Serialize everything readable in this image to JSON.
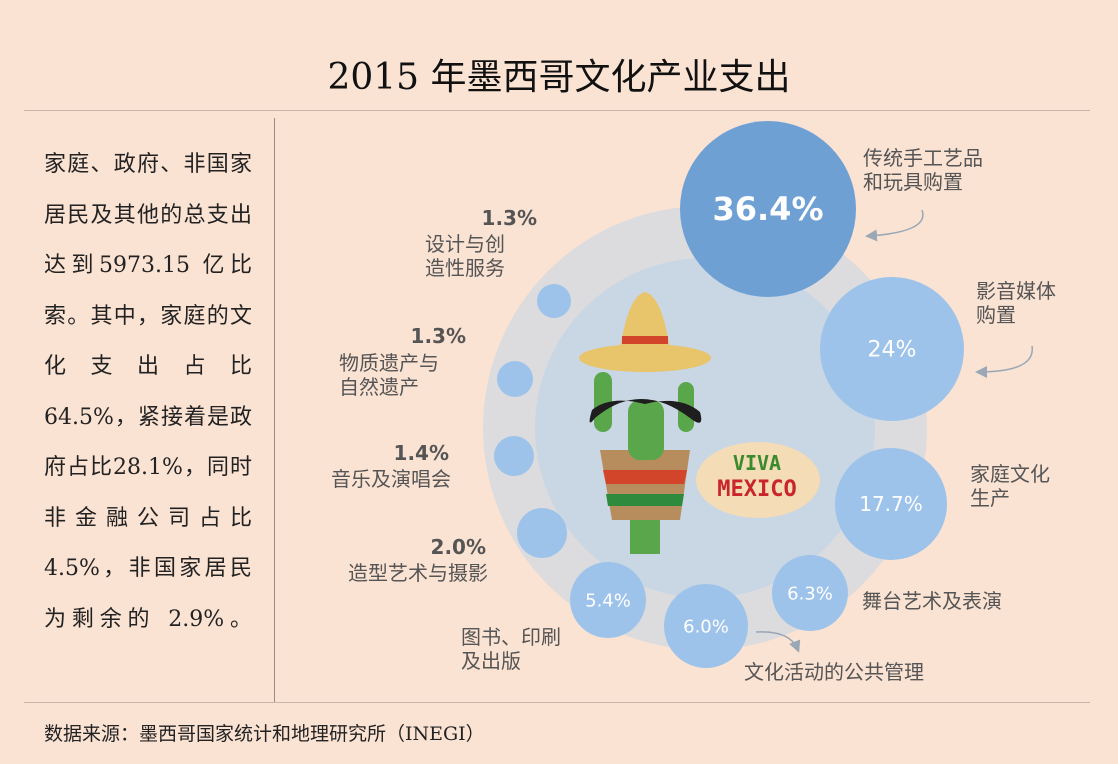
{
  "title": "2015 年墨西哥文化产业支出",
  "summary": "家庭、政府、非国家居民及其他的总支出达到5973.15 亿比索。其中，家庭的文化支出占比 64.5%，紧接着是政府占比28.1%，同时非金融公司占比 4.5%，非国家居民为剩余的 2.9%。",
  "source": "数据来源：墨西哥国家统计和地理研究所（INEGI）",
  "illustration": {
    "badge_line1": "VIVA",
    "badge_line2": "MEXICO"
  },
  "colors": {
    "background": "#fbe3d4",
    "bubble_large": "#6fa0d4",
    "bubble": "#9ec3ea",
    "ring": "#d9d9dd",
    "inner": "#c9d6e4"
  },
  "chart_data": {
    "type": "bubble",
    "unit": "%",
    "categories": [
      {
        "name": "传统手工艺品和玩具购置",
        "value": 36.4,
        "label": "36.4%"
      },
      {
        "name": "影音媒体购置",
        "value": 24,
        "label": "24%"
      },
      {
        "name": "家庭文化生产",
        "value": 17.7,
        "label": "17.7%"
      },
      {
        "name": "舞台艺术及表演",
        "value": 6.3,
        "label": "6.3%"
      },
      {
        "name": "文化活动的公共管理",
        "value": 6.0,
        "label": "6.0%"
      },
      {
        "name": "图书、印刷及出版",
        "value": 5.4,
        "label": "5.4%"
      },
      {
        "name": "造型艺术与摄影",
        "value": 2.0,
        "label": "2.0%"
      },
      {
        "name": "音乐及演唱会",
        "value": 1.4,
        "label": "1.4%"
      },
      {
        "name": "物质遗产与自然遗产",
        "value": 1.3,
        "label": "1.3%"
      },
      {
        "name": "设计与创造性服务",
        "value": 1.3,
        "label": "1.3%"
      }
    ]
  }
}
